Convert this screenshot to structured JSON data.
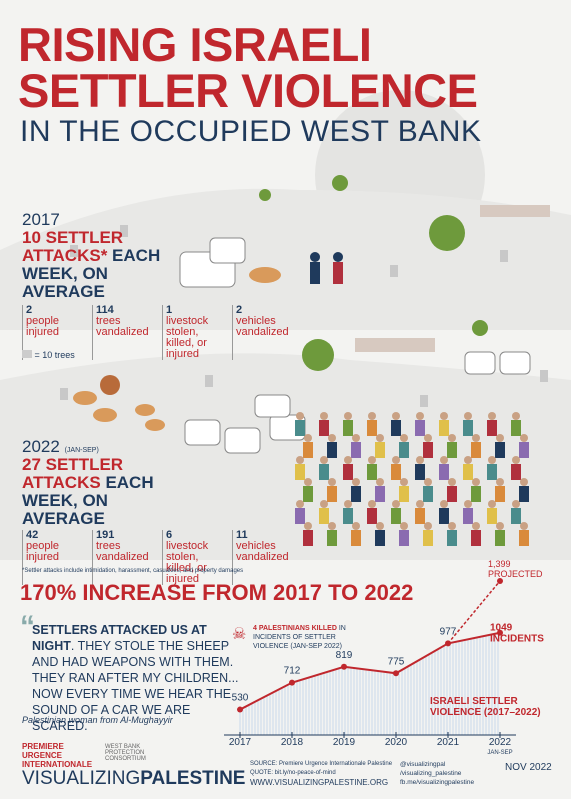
{
  "header": {
    "title": [
      "RISING ISRAELI",
      "SETTLER VIOLENCE"
    ],
    "subtitle": "IN THE OCCUPIED WEST BANK"
  },
  "y2017": {
    "year": "2017",
    "headline_red": "10 SETTLER ATTACKS*",
    "headline_rest": "EACH WEEK, ON AVERAGE",
    "stats": [
      {
        "value": 2,
        "label": "people injured"
      },
      {
        "value": 114,
        "label": "trees vandalized"
      },
      {
        "value": 1,
        "label": "livestock stolen, killed, or injured"
      },
      {
        "value": 2,
        "label": "vehicles vandalized"
      }
    ],
    "legend": "= 10 trees"
  },
  "y2022": {
    "year": "2022",
    "period": "(JAN-SEP)",
    "headline_red": "27 SETTLER ATTACKS",
    "headline_rest": "EACH WEEK, ON AVERAGE",
    "stats": [
      {
        "value": 42,
        "label": "people injured"
      },
      {
        "value": 191,
        "label": "trees vandalized"
      },
      {
        "value": 6,
        "label": "livestock stolen, killed, or injured"
      },
      {
        "value": 11,
        "label": "vehicles vandalized"
      }
    ]
  },
  "footnote": "*Settler attacks include intimidation, harassment, casualties, and property damages",
  "increase": "170% INCREASE FROM 2017 TO 2022",
  "quote": {
    "lead": "SETTLERS ATTACKED US AT NIGHT",
    "text": ". THEY STOLE THE SHEEP AND HAD WEAPONS WITH THEM. THEY RAN AFTER MY CHILDREN... NOW EVERY TIME WE HEAR THE SOUND OF A CAR WE ARE SCARED.",
    "attribution": "Palestinian woman from Al-Mughayyir"
  },
  "chart_data": {
    "type": "line",
    "title": "ISRAELI SETTLER VIOLENCE (2017–2022)",
    "categories": [
      "2017",
      "2018",
      "2019",
      "2020",
      "2021",
      "2022"
    ],
    "category_note": "JAN-SEP",
    "values": [
      530,
      712,
      819,
      775,
      977,
      1049
    ],
    "values_unit": "INCIDENTS",
    "projected": {
      "value": 1399,
      "label": "1,399",
      "note": "PROJECTED"
    },
    "color": "#c0272d",
    "ylim": [
      0,
      1500
    ],
    "annotation": {
      "lead": "4 PALESTINIANS KILLED",
      "text": "IN INCIDENTS OF SETTLER VIOLENCE (JAN-SEP 2022)"
    }
  },
  "footer": {
    "org1": "PREMIERE URGENCE INTERNATIONALE",
    "org2": "WEST BANK PROTECTION CONSORTIUM",
    "brand_light": "VISUALIZING",
    "brand_bold": "PALESTINE",
    "source": "SOURCE: Premiere Urgence Internationale Palestine",
    "quote_src": "QUOTE: bit.ly/no-peace-of-mind",
    "site": "WWW.VISUALIZINGPALESTINE.ORG",
    "social": [
      "@visualizingpal",
      "/visualizing_palestine",
      "fb.me/visualizingpalestine"
    ],
    "date": "NOV 2022"
  }
}
